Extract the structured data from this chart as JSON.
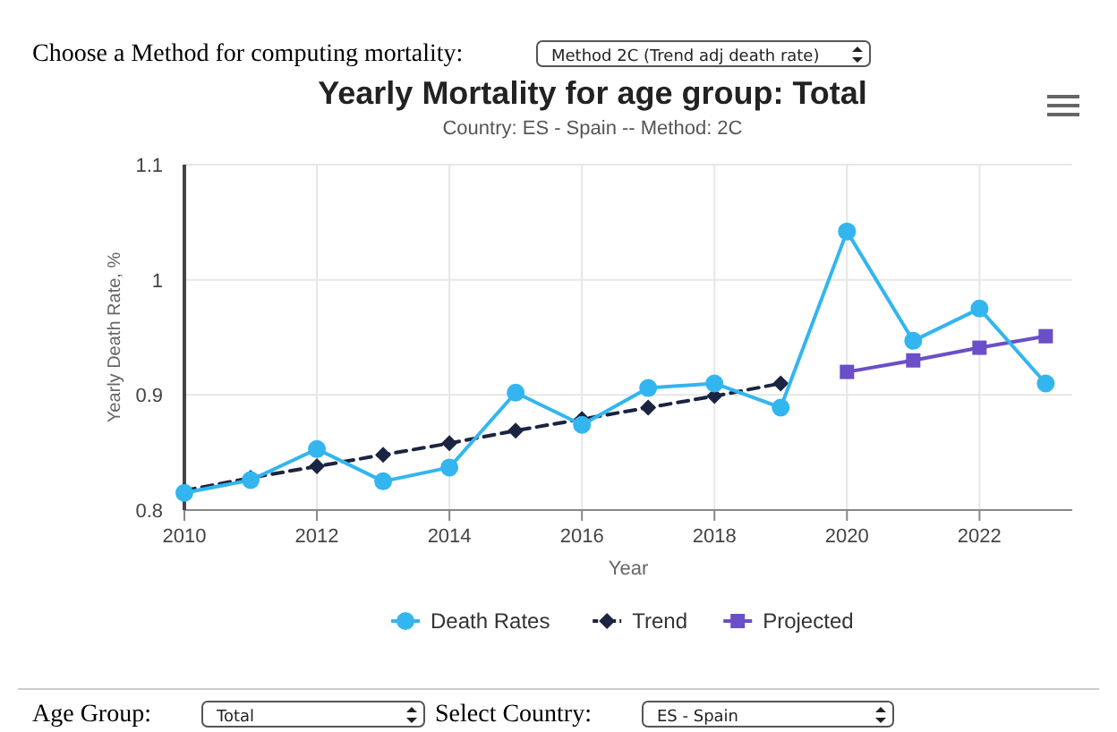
{
  "chart_data": {
    "type": "line",
    "title": "Yearly Mortality for age group: Total",
    "subtitle": "Country: ES - Spain -- Method: 2C",
    "xlabel": "Year",
    "ylabel": "Yearly Death Rate, %",
    "annotations": [
      "Choose a Method for computing mortality:",
      "Method 2C (Trend adj death rate)",
      "Age Group:",
      "Total",
      "Select Country:",
      "ES - Spain"
    ],
    "x": [
      2010,
      2011,
      2012,
      2013,
      2014,
      2015,
      2016,
      2017,
      2018,
      2019,
      2020,
      2021,
      2022,
      2023
    ],
    "series": [
      {
        "name": "Death Rates",
        "color": "#33b5f0",
        "marker": "circle",
        "line_style": "solid",
        "values": [
          0.815,
          0.826,
          0.853,
          0.825,
          0.837,
          0.902,
          0.874,
          0.906,
          0.91,
          0.889,
          1.042,
          0.947,
          0.975,
          0.91
        ]
      },
      {
        "name": "Trend",
        "color": "#1b2440",
        "marker": "diamond",
        "line_style": "dashed",
        "x": [
          2010,
          2011,
          2012,
          2013,
          2014,
          2015,
          2016,
          2017,
          2018,
          2019
        ],
        "values": [
          0.817,
          0.828,
          0.838,
          0.848,
          0.858,
          0.869,
          0.879,
          0.889,
          0.899,
          0.91
        ]
      },
      {
        "name": "Projected",
        "color": "#6a4fc8",
        "marker": "square",
        "line_style": "solid",
        "x": [
          2020,
          2021,
          2022,
          2023
        ],
        "values": [
          0.92,
          0.93,
          0.941,
          0.951
        ]
      }
    ],
    "xlim": [
      2010,
      2023.4
    ],
    "xticks": [
      2010,
      2012,
      2014,
      2016,
      2018,
      2020,
      2022
    ],
    "ylim": [
      0.8,
      1.1
    ],
    "yticks": [
      0.8,
      0.9,
      1,
      1.1
    ],
    "grid": true,
    "legend": "bottom"
  }
}
